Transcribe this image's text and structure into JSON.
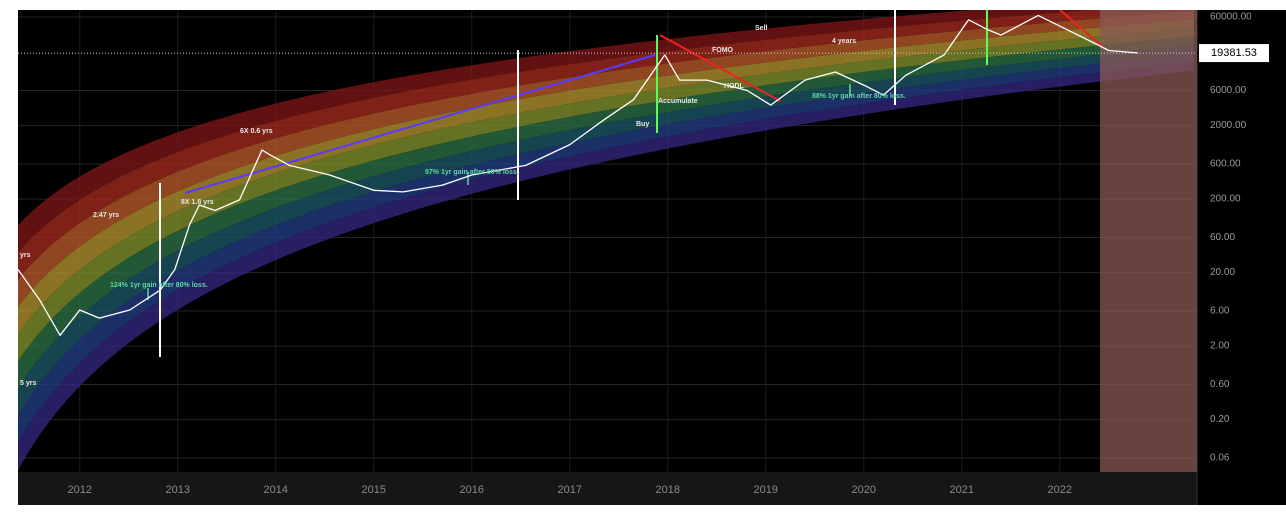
{
  "chart_data": {
    "type": "line",
    "log_scale": true,
    "grid": true,
    "x": [
      2011.37,
      2011.59,
      2011.8,
      2012.0,
      2012.2,
      2012.51,
      2012.82,
      2012.97,
      2013.12,
      2013.22,
      2013.38,
      2013.63,
      2013.86,
      2013.94,
      2014.14,
      2014.55,
      2015.0,
      2015.3,
      2015.7,
      2016.0,
      2016.55,
      2017.0,
      2017.35,
      2017.65,
      2017.97,
      2018.12,
      2018.4,
      2018.81,
      2019.05,
      2019.4,
      2019.71,
      2020.0,
      2020.2,
      2020.43,
      2020.82,
      2021.07,
      2021.27,
      2021.4,
      2021.78,
      2022.08,
      2022.34,
      2022.5,
      2022.8
    ],
    "series": [
      {
        "color": "#ffffff",
        "values": [
          22,
          8.5,
          2.8,
          6.2,
          4.8,
          6.2,
          11.5,
          22,
          89,
          166,
          140,
          195,
          930,
          800,
          575,
          425,
          263,
          250,
          310,
          425,
          575,
          1100,
          2400,
          4500,
          18300,
          8300,
          8300,
          6000,
          3800,
          8300,
          10700,
          7100,
          5200,
          9700,
          18300,
          55000,
          40000,
          34000,
          63000,
          40000,
          27000,
          21000,
          19400
        ]
      }
    ],
    "xlim": [
      2011.37,
      2023.4
    ],
    "xticks": [
      2012,
      2013,
      2014,
      2015,
      2016,
      2017,
      2018,
      2019,
      2020,
      2021,
      2022
    ],
    "ylim": [
      0.0387,
      74700
    ],
    "yticks": [
      {
        "value": 60000,
        "label": "60000.00"
      },
      {
        "value": 6000,
        "label": "6000.00"
      },
      {
        "value": 2000,
        "label": "2000.00"
      },
      {
        "value": 600,
        "label": "600.00"
      },
      {
        "value": 200,
        "label": "200.00"
      },
      {
        "value": 60,
        "label": "60.00"
      },
      {
        "value": 20,
        "label": "20.00"
      },
      {
        "value": 6,
        "label": "6.00"
      },
      {
        "value": 2,
        "label": "2.00"
      },
      {
        "value": 0.6,
        "label": "0.60"
      },
      {
        "value": 0.2,
        "label": "0.20"
      },
      {
        "value": 0.06,
        "label": "0.06"
      }
    ],
    "last_value": 19381.53,
    "band_colors": [
      "#7a1616",
      "#a02a1e",
      "#b5582a",
      "#b08f2e",
      "#7f8f2c",
      "#2c6e44",
      "#1d5566",
      "#233c82",
      "#33267e"
    ],
    "annotations": [
      "yrs",
      "2.47 yrs",
      "8X 1.8 yrs",
      "6X 0.6 yrs",
      "124% 1yr gain after 80% loss.",
      "97% 1yr gain after 80% loss.",
      "Sell",
      "FOMO",
      "HODL",
      "Accumulate",
      "Buy",
      "4 years",
      "88% 1yr gain after 80% loss.",
      "5 yrs"
    ]
  }
}
